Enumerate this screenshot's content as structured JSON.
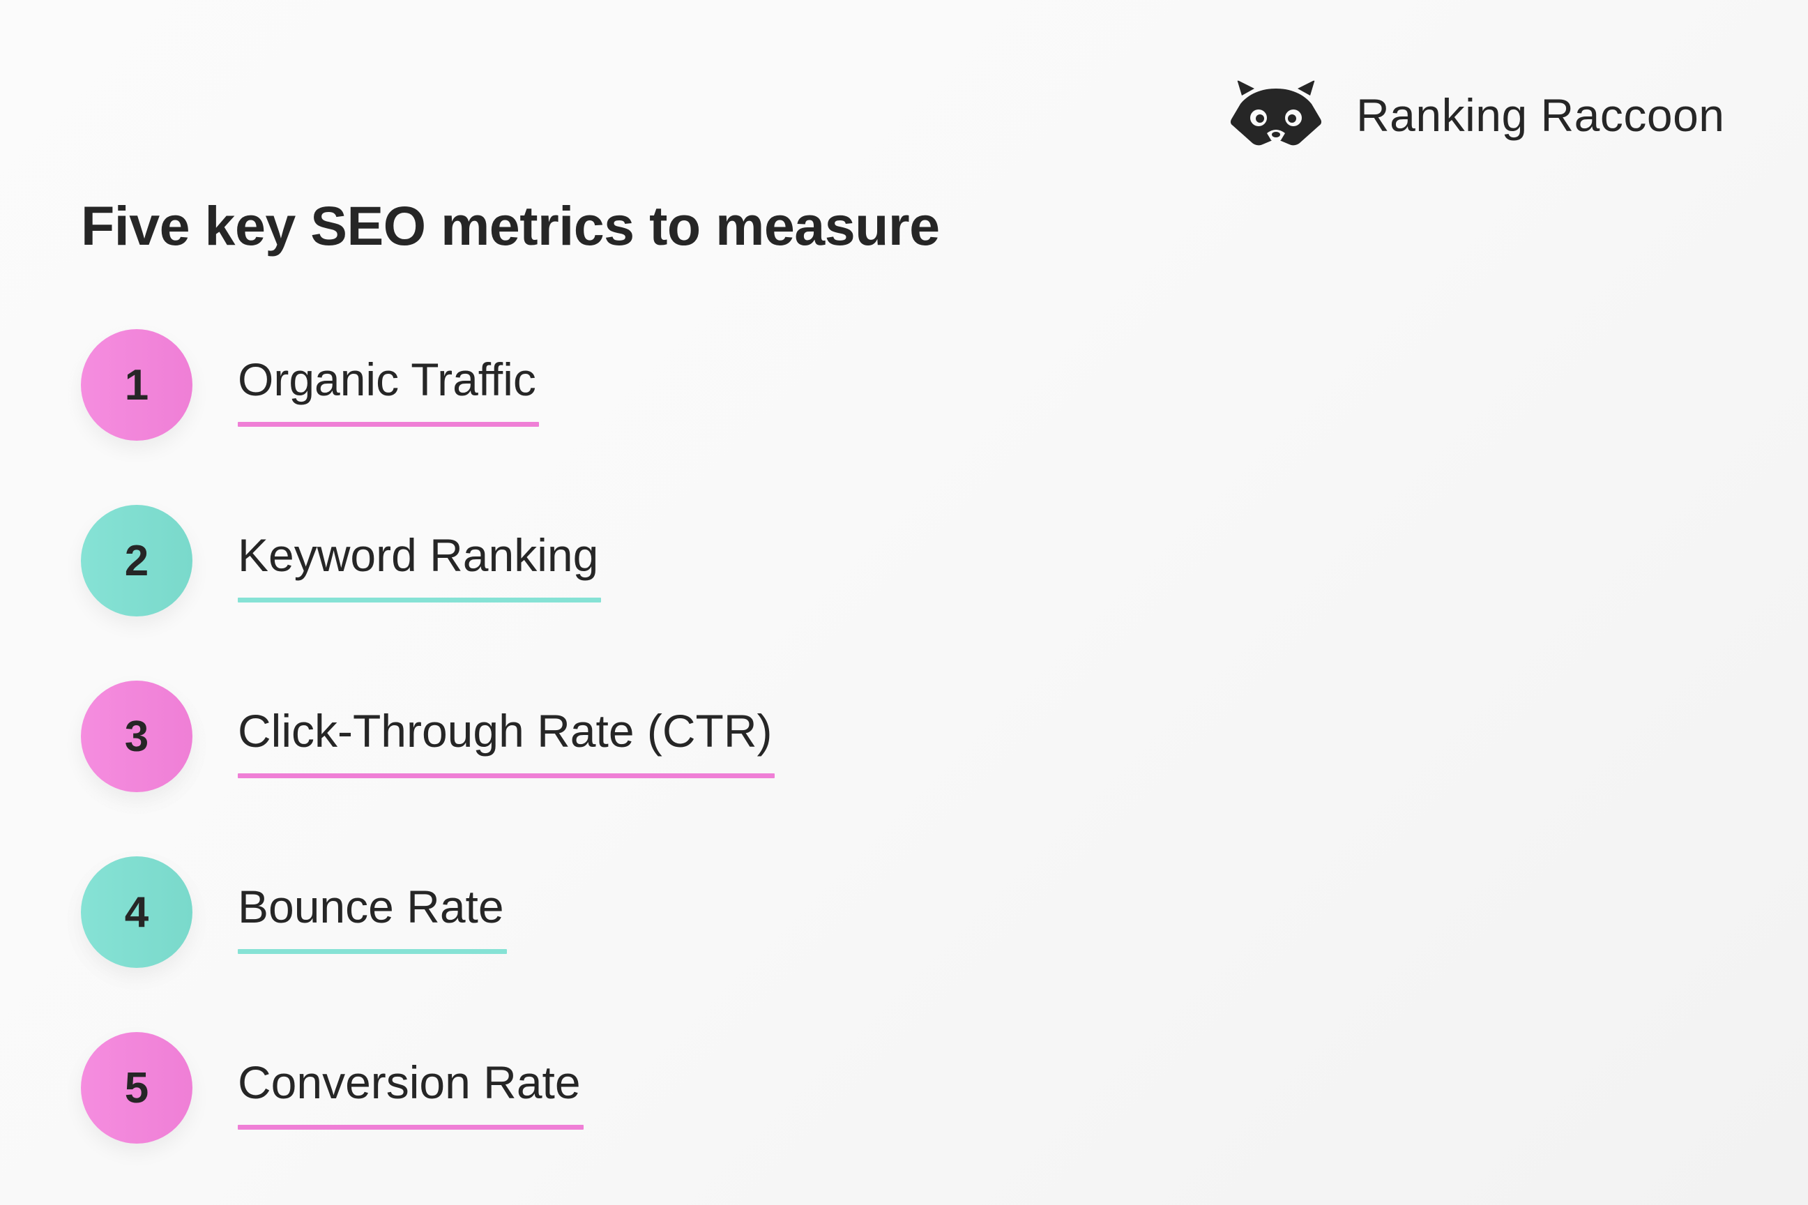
{
  "brand": {
    "name": "Ranking Raccoon",
    "logo_icon": "raccoon-face-icon"
  },
  "title": "Five key SEO metrics to measure",
  "colors": {
    "pink_accent": "#ef7fd6",
    "teal_accent": "#86e2d5",
    "text": "#262626"
  },
  "metrics": [
    {
      "number": "1",
      "label": "Organic Traffic",
      "accent": "pink"
    },
    {
      "number": "2",
      "label": "Keyword Ranking",
      "accent": "teal"
    },
    {
      "number": "3",
      "label": "Click-Through Rate (CTR)",
      "accent": "pink"
    },
    {
      "number": "4",
      "label": "Bounce Rate",
      "accent": "teal"
    },
    {
      "number": "5",
      "label": "Conversion Rate",
      "accent": "pink"
    }
  ]
}
